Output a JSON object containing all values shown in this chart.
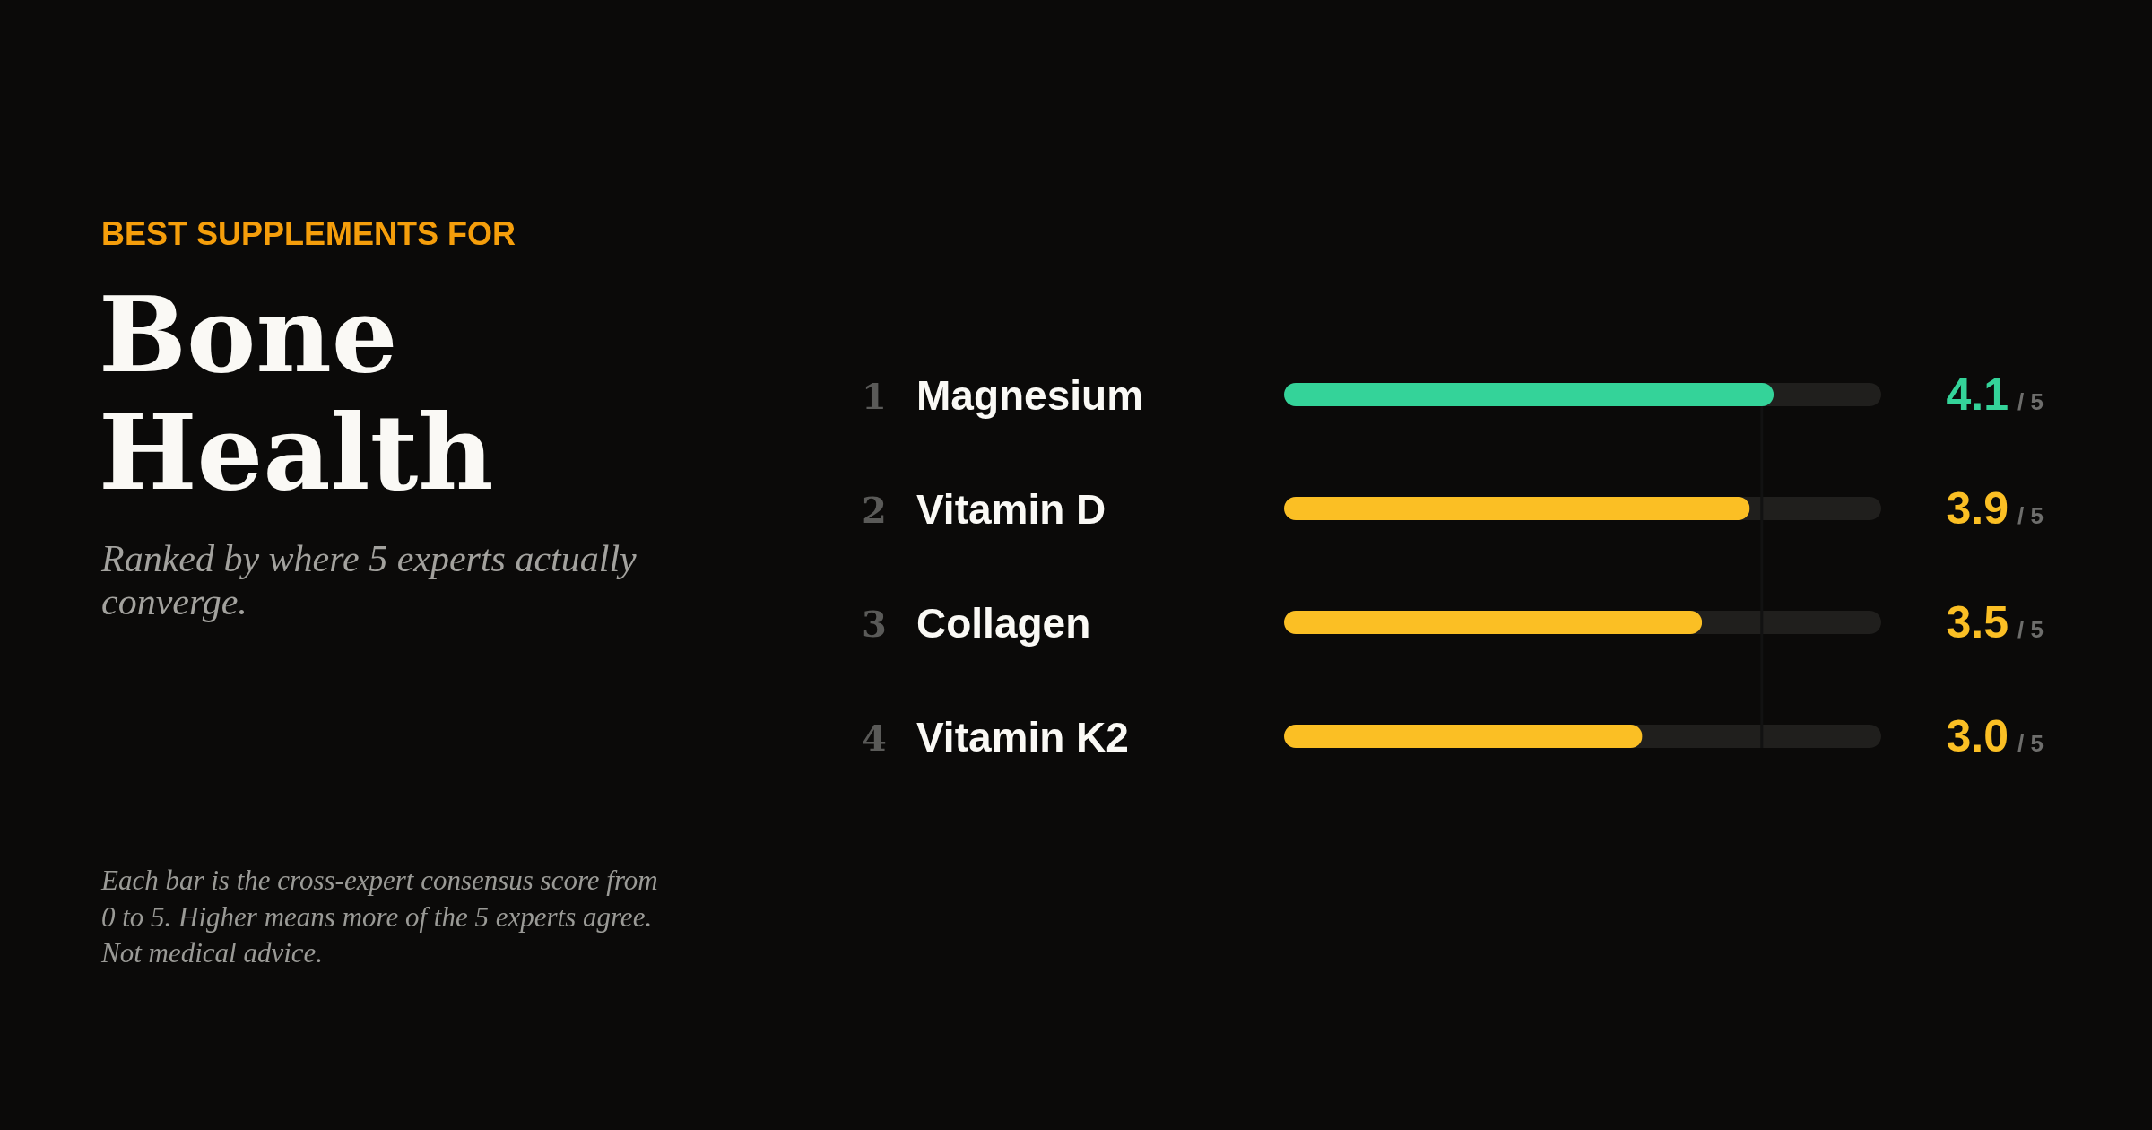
{
  "chart_data": {
    "type": "bar",
    "orientation": "horizontal",
    "title": "Bone Health",
    "subtitle": "Ranked by where 5 experts actually converge.",
    "categories": [
      "Magnesium",
      "Vitamin D",
      "Collagen",
      "Vitamin K2"
    ],
    "values": [
      4.1,
      3.9,
      3.5,
      3.0
    ],
    "colors": [
      "#34d399",
      "#fbbf24",
      "#fbbf24",
      "#fbbf24"
    ],
    "value_labels": [
      "4.1",
      "3.9",
      "3.5",
      "3.0"
    ],
    "xlim": [
      0,
      5
    ],
    "ref_lines": [
      {
        "axis": "x",
        "value": 4,
        "color": "#121212"
      }
    ],
    "tick_labels": "y",
    "annotations": [
      "BEST SUPPLEMENTS FOR",
      "Each bar is the cross-expert consensus score from 0 to 5. Higher means more of the 5 experts agree. Not medical advice.",
      "1",
      "2",
      "3",
      "4",
      "/ 5",
      "/ 5",
      "/ 5",
      "/ 5"
    ]
  }
}
